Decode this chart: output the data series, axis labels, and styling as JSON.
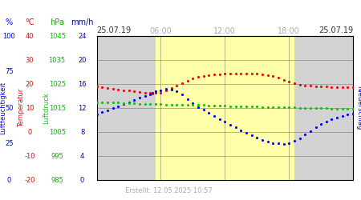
{
  "title": "25.07.19",
  "title_right": "25.07.19",
  "subtitle": "Erstellt: 12.05.2025 10:57",
  "x_ticks": [
    6,
    12,
    18
  ],
  "x_tick_labels": [
    "06:00",
    "12:00",
    "18:00"
  ],
  "x_min": 0,
  "x_max": 24,
  "day_start": 5.5,
  "day_end": 18.5,
  "day_color": "#ffffaa",
  "night_color": "#d3d3d3",
  "red_x": [
    0,
    0.5,
    1,
    1.5,
    2,
    2.5,
    3,
    3.5,
    4,
    4.5,
    5,
    5.25,
    5.5,
    6.0,
    6.5,
    7.0,
    7.5,
    8.0,
    8.5,
    9.0,
    9.5,
    10.0,
    10.5,
    11.0,
    11.5,
    12.0,
    12.5,
    13.0,
    13.5,
    14.0,
    14.5,
    15.0,
    15.5,
    16.0,
    16.5,
    17.0,
    17.5,
    18.0,
    18.5,
    19.0,
    19.5,
    20.0,
    20.5,
    21.0,
    21.5,
    22.0,
    22.5,
    23.0,
    23.5,
    24.0
  ],
  "red_y": [
    19.0,
    18.7,
    18.4,
    18.1,
    17.8,
    17.5,
    17.2,
    17.0,
    16.8,
    16.5,
    16.2,
    16.1,
    16.2,
    16.5,
    17.2,
    18.2,
    19.3,
    20.3,
    21.3,
    22.2,
    22.9,
    23.4,
    23.7,
    23.9,
    24.1,
    24.3,
    24.4,
    24.5,
    24.5,
    24.4,
    24.3,
    24.2,
    24.0,
    23.7,
    23.2,
    22.6,
    21.8,
    21.0,
    20.3,
    19.8,
    19.5,
    19.3,
    19.1,
    19.0,
    18.9,
    18.8,
    18.7,
    18.7,
    18.6,
    18.5
  ],
  "blue_x": [
    0,
    0.5,
    1,
    1.5,
    2,
    2.5,
    3,
    3.5,
    4,
    4.5,
    5,
    5.25,
    5.5,
    6.0,
    6.5,
    7.0,
    7.5,
    8.0,
    8.5,
    9.0,
    9.5,
    10.0,
    10.5,
    11.0,
    11.5,
    12.0,
    12.5,
    13.0,
    13.5,
    14.0,
    14.5,
    15.0,
    15.5,
    16.0,
    16.5,
    17.0,
    17.5,
    18.0,
    18.5,
    19.0,
    19.5,
    20.0,
    20.5,
    21.0,
    21.5,
    22.0,
    22.5,
    23.0,
    23.5,
    24.0
  ],
  "blue_y": [
    11.0,
    11.3,
    11.6,
    12.0,
    12.3,
    12.7,
    13.0,
    13.3,
    13.7,
    14.0,
    14.3,
    14.5,
    14.8,
    15.0,
    15.2,
    15.1,
    14.8,
    14.3,
    13.5,
    12.8,
    12.2,
    11.7,
    11.2,
    10.7,
    10.2,
    9.7,
    9.2,
    8.8,
    8.3,
    7.9,
    7.5,
    7.1,
    6.7,
    6.4,
    6.2,
    6.1,
    6.0,
    6.2,
    6.5,
    7.0,
    7.6,
    8.2,
    8.8,
    9.3,
    9.7,
    10.1,
    10.4,
    10.7,
    10.9,
    11.1
  ],
  "green_x": [
    0,
    0.5,
    1,
    1.5,
    2,
    2.5,
    3,
    3.5,
    4,
    4.5,
    5,
    5.5,
    6.0,
    6.5,
    7.0,
    7.5,
    8.0,
    8.5,
    9.0,
    9.5,
    10.0,
    10.5,
    11.0,
    11.5,
    12.0,
    12.5,
    13.0,
    13.5,
    14.0,
    14.5,
    15.0,
    15.5,
    16.0,
    16.5,
    17.0,
    17.5,
    18.0,
    18.5,
    19.0,
    19.5,
    20.0,
    20.5,
    21.0,
    21.5,
    22.0,
    22.5,
    23.0,
    23.5,
    24.0
  ],
  "green_y": [
    13.0,
    13.0,
    12.9,
    12.9,
    12.9,
    12.8,
    12.8,
    12.8,
    12.7,
    12.7,
    12.7,
    12.7,
    12.7,
    12.6,
    12.6,
    12.6,
    12.6,
    12.5,
    12.5,
    12.5,
    12.5,
    12.4,
    12.4,
    12.4,
    12.4,
    12.3,
    12.3,
    12.3,
    12.3,
    12.3,
    12.3,
    12.2,
    12.2,
    12.2,
    12.1,
    12.1,
    12.1,
    12.1,
    12.0,
    12.0,
    12.0,
    12.0,
    12.0,
    12.0,
    11.9,
    11.9,
    11.9,
    11.9,
    11.9
  ],
  "red_color": "#ff0000",
  "blue_color": "#0000ff",
  "green_color": "#00cc00",
  "marker_size": 2.5,
  "fig_bg": "#ffffff",
  "ylabel_left1": "Luftfeuchtigkeit",
  "ylabel_left1_color": "#0000ff",
  "ylabel_left2": "Temperatur",
  "ylabel_left2_color": "#ff0000",
  "ylabel_left3": "Luftdruck",
  "ylabel_left3_color": "#00cc00",
  "ylabel_right": "Niederschlag",
  "ylabel_right_color": "#0000cc",
  "top_labels": [
    "%",
    "°C",
    "hPa",
    "mm/h"
  ],
  "top_label_colors": [
    "#0000ff",
    "#ff0000",
    "#00bb00",
    "#0000cc"
  ],
  "pct_ticks": [
    100,
    75,
    50,
    25,
    0
  ],
  "pct_labels": [
    "100",
    "75",
    "50",
    "25",
    "0"
  ],
  "temp_ticks": [
    40,
    30,
    20,
    10,
    0,
    -10,
    -20
  ],
  "temp_labels": [
    "40",
    "30",
    "20",
    "10",
    "0",
    "-10",
    "-20"
  ],
  "hpa_ticks": [
    1045,
    1035,
    1025,
    1015,
    1005,
    995,
    985
  ],
  "hpa_labels": [
    "1045",
    "1035",
    "1025",
    "1015",
    "1005",
    "995",
    "985"
  ],
  "mmh_ticks": [
    24,
    20,
    16,
    12,
    8,
    4,
    0
  ],
  "mmh_labels": [
    "24",
    "20",
    "16",
    "12",
    "8",
    "4",
    "0"
  ]
}
